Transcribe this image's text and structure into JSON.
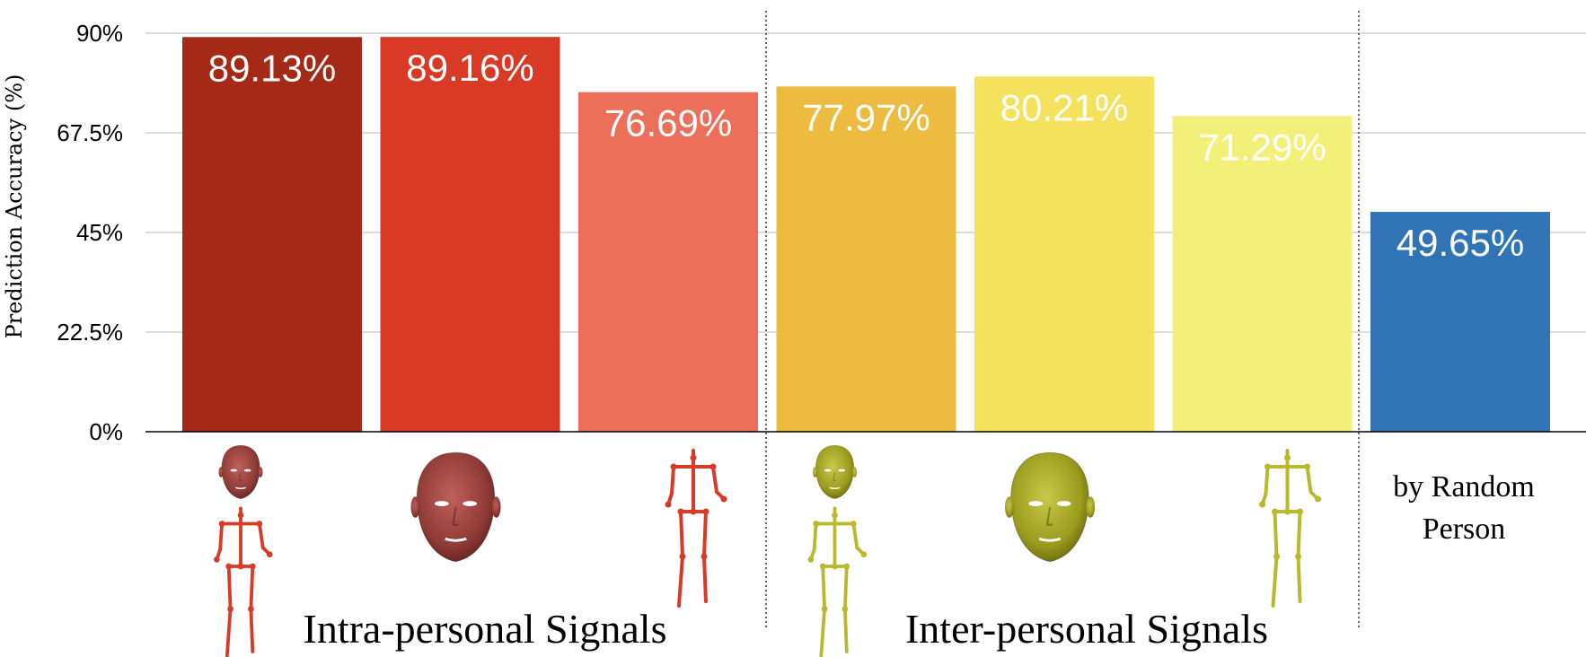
{
  "chart_data": {
    "type": "bar",
    "ylabel": "Prediction Accuracy (%)",
    "ylim": [
      0,
      90
    ],
    "yticks": [
      0,
      22.5,
      45,
      67.5,
      90
    ],
    "ytick_labels": [
      "0%",
      "22.5%",
      "45%",
      "67.5%",
      "90%"
    ],
    "grid": "horizontal",
    "bars": [
      {
        "value": 89.13,
        "label": "89.13%",
        "color": "#a42a17",
        "icon": "face-and-body-icon"
      },
      {
        "value": 89.16,
        "label": "89.16%",
        "color": "#d93a26",
        "icon": "face-icon"
      },
      {
        "value": 76.69,
        "label": "76.69%",
        "color": "#ec6f5a",
        "icon": "body-skeleton-icon"
      },
      {
        "value": 77.97,
        "label": "77.97%",
        "color": "#edbb40",
        "icon": "face-and-body-icon"
      },
      {
        "value": 80.21,
        "label": "80.21%",
        "color": "#f5e25c",
        "icon": "face-icon"
      },
      {
        "value": 71.29,
        "label": "71.29%",
        "color": "#f3f07a",
        "icon": "body-skeleton-icon"
      },
      {
        "value": 49.65,
        "label": "49.65%",
        "color": "#3174b5",
        "icon": ""
      }
    ],
    "groups": [
      {
        "label": "Intra-personal Signals"
      },
      {
        "label": "Inter-personal Signals"
      }
    ],
    "random_label": [
      "by Random",
      "Person"
    ]
  }
}
